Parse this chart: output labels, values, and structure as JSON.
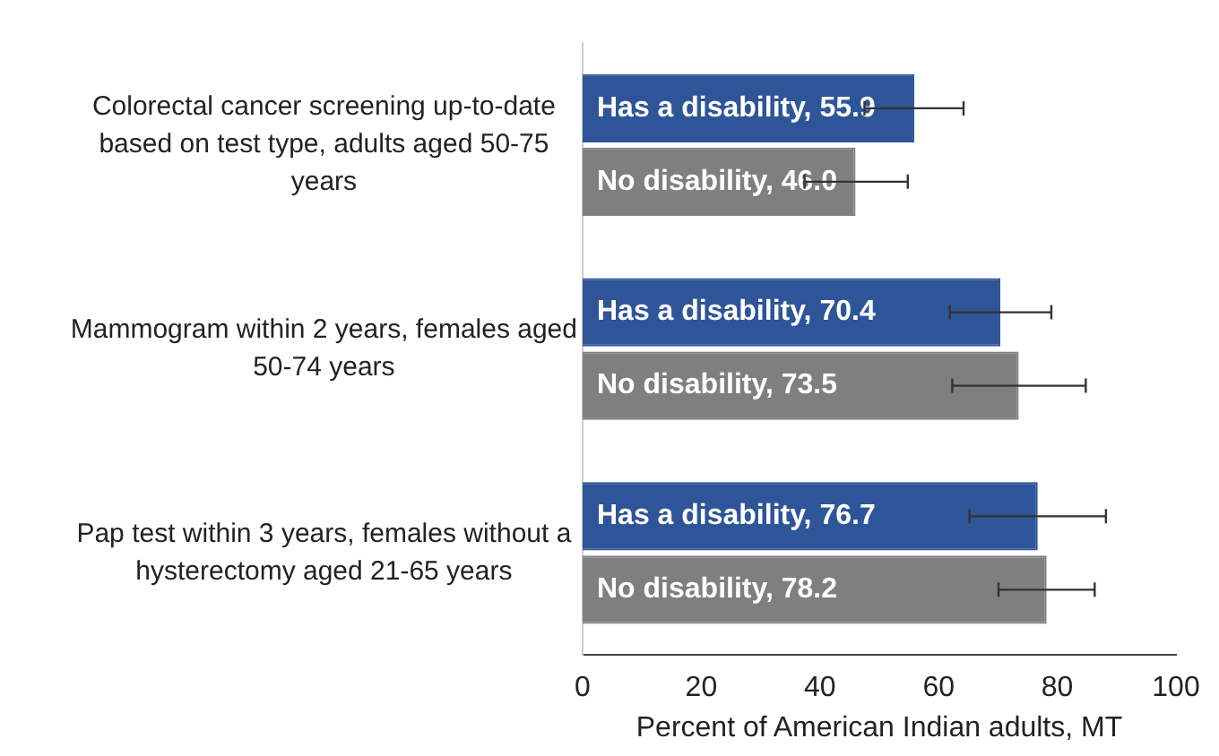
{
  "chart_data": {
    "type": "bar",
    "orientation": "horizontal",
    "categories": [
      "Colorectal cancer screening up-to-date based on test type, adults aged 50-75 years",
      "Mammogram within 2 years, females aged 50-74 years",
      "Pap test within 3 years, females without a hysterectomy aged 21-65 years"
    ],
    "series": [
      {
        "name": "Has a disability,",
        "color": "#2e5597",
        "values": [
          55.9,
          70.4,
          76.7
        ],
        "value_labels": [
          "55.9",
          "70.4",
          "76.7"
        ],
        "errors": [
          [
            47.5,
            64.2
          ],
          [
            61.9,
            79.0
          ],
          [
            65.2,
            88.2
          ]
        ]
      },
      {
        "name": "No disability,",
        "color": "#7f7f7f",
        "values": [
          46.0,
          73.5,
          78.2
        ],
        "value_labels": [
          "46.0",
          "73.5",
          "78.2"
        ],
        "errors": [
          [
            37.4,
            54.8
          ],
          [
            62.3,
            84.8
          ],
          [
            70.1,
            86.3
          ]
        ]
      }
    ],
    "xlabel": "Percent of American Indian adults, MT",
    "xlim": [
      0,
      100
    ],
    "xticks": [
      0,
      20,
      40,
      60,
      80,
      100
    ],
    "grid": false,
    "legend": false
  }
}
